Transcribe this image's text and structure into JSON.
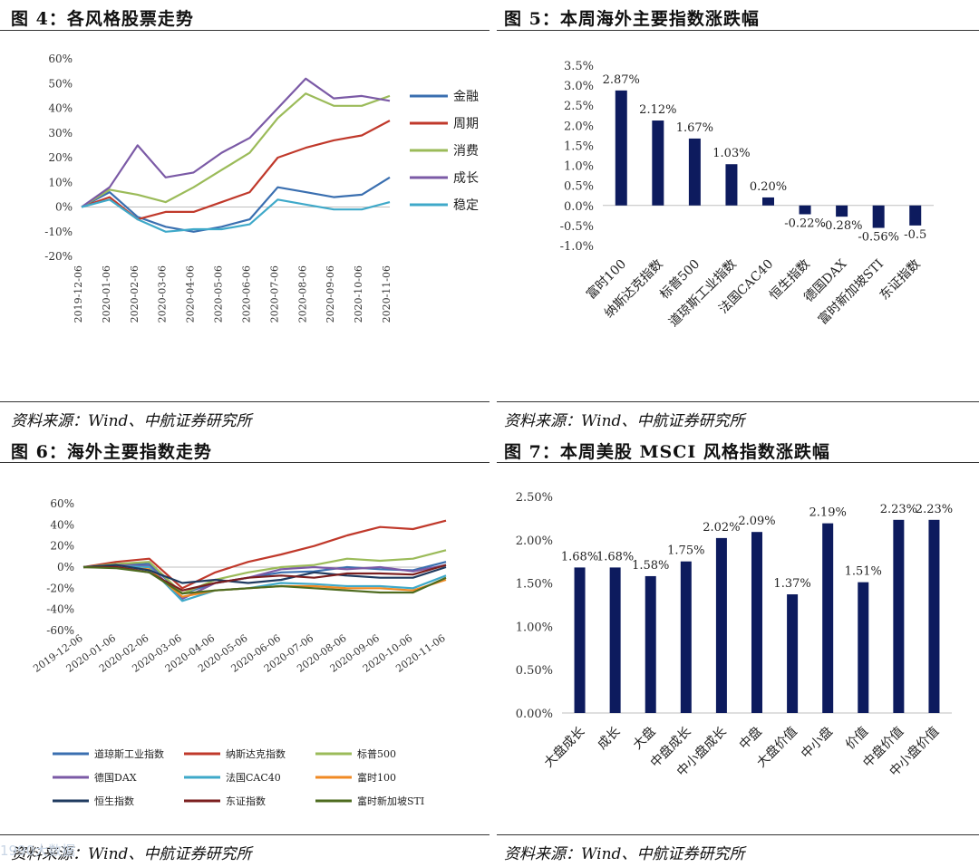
{
  "figures": {
    "fig4": {
      "title": "图 4：各风格股票走势",
      "source": "资料来源：Wind、中航证券研究所"
    },
    "fig5": {
      "title": "图 5：本周海外主要指数涨跌幅",
      "source": "资料来源：Wind、中航证券研究所"
    },
    "fig6": {
      "title": "图 6：海外主要指数走势",
      "source": "资料来源：Wind、中航证券研究所"
    },
    "fig7": {
      "title": "图 7：本周美股 MSCI 风格指数涨跌幅",
      "source": "资料来源：Wind、中航证券研究所"
    }
  },
  "watermark": "1990大数据",
  "colors": {
    "bar": "#0d1b5e",
    "grid": "#d9d9d9"
  },
  "chart_data": [
    {
      "id": "fig4",
      "type": "line",
      "title": "",
      "xlabel": "",
      "ylabel": "",
      "x": [
        "2019-12-06",
        "2020-01-06",
        "2020-02-06",
        "2020-03-06",
        "2020-04-06",
        "2020-05-06",
        "2020-06-06",
        "2020-07-06",
        "2020-08-06",
        "2020-09-06",
        "2020-10-06",
        "2020-11-06"
      ],
      "yticks": [
        "60%",
        "50%",
        "40%",
        "30%",
        "20%",
        "10%",
        "0%",
        "-10%",
        "-20%"
      ],
      "ylim": [
        -20,
        60
      ],
      "legend_position": "right",
      "series": [
        {
          "name": "金融",
          "color": "#3a6fb0",
          "values": [
            0,
            6,
            -4,
            -8,
            -10,
            -8,
            -5,
            8,
            6,
            4,
            5,
            12
          ]
        },
        {
          "name": "周期",
          "color": "#c0392b",
          "values": [
            0,
            4,
            -5,
            -2,
            -2,
            2,
            6,
            20,
            24,
            27,
            29,
            35
          ]
        },
        {
          "name": "消费",
          "color": "#9bbb59",
          "values": [
            0,
            7,
            5,
            2,
            8,
            15,
            22,
            36,
            46,
            41,
            41,
            45
          ]
        },
        {
          "name": "成长",
          "color": "#7b5aa6",
          "values": [
            0,
            8,
            25,
            12,
            14,
            22,
            28,
            40,
            52,
            44,
            45,
            43
          ]
        },
        {
          "name": "稳定",
          "color": "#3fa9c9",
          "values": [
            0,
            3,
            -5,
            -10,
            -9,
            -9,
            -7,
            3,
            1,
            -1,
            -1,
            2
          ]
        }
      ]
    },
    {
      "id": "fig5",
      "type": "bar",
      "title": "",
      "xlabel": "",
      "ylabel": "",
      "categories": [
        "富时100",
        "纳斯达克指数",
        "标普500",
        "道琼斯工业指数",
        "法国CAC40",
        "恒生指数",
        "德国DAX",
        "富时新加坡STI",
        "东证指数"
      ],
      "values": [
        2.87,
        2.12,
        1.67,
        1.03,
        0.2,
        -0.22,
        -0.28,
        -0.56,
        -0.5
      ],
      "labels": [
        "2.87%",
        "2.12%",
        "1.67%",
        "1.03%",
        "0.20%",
        "-0.22%",
        "-0.28%",
        "-0.56%",
        "-0.5"
      ],
      "yticks": [
        "3.5%",
        "3.0%",
        "2.5%",
        "2.0%",
        "1.5%",
        "1.0%",
        "0.5%",
        "0.0%",
        "-0.5%",
        "-1.0%"
      ],
      "ylim": [
        -1.0,
        3.5
      ]
    },
    {
      "id": "fig6",
      "type": "line",
      "title": "",
      "xlabel": "",
      "ylabel": "",
      "x": [
        "2019-12-06",
        "2020-01-06",
        "2020-02-06",
        "2020-03-06",
        "2020-04-06",
        "2020-05-06",
        "2020-06-06",
        "2020-07-06",
        "2020-08-06",
        "2020-09-06",
        "2020-10-06",
        "2020-11-06"
      ],
      "yticks": [
        "60%",
        "40%",
        "20%",
        "0%",
        "-20%",
        "-40%",
        "-60%"
      ],
      "ylim": [
        -60,
        60
      ],
      "legend_position": "bottom",
      "series": [
        {
          "name": "道琼斯工业指数",
          "color": "#3a6fb0",
          "values": [
            0,
            2,
            3,
            -25,
            -15,
            -10,
            -5,
            -4,
            0,
            -2,
            -3,
            5
          ]
        },
        {
          "name": "纳斯达克指数",
          "color": "#c0392b",
          "values": [
            0,
            5,
            8,
            -20,
            -5,
            5,
            12,
            20,
            30,
            38,
            36,
            44
          ]
        },
        {
          "name": "标普500",
          "color": "#9bbb59",
          "values": [
            0,
            3,
            5,
            -25,
            -12,
            -5,
            0,
            2,
            8,
            6,
            8,
            16
          ]
        },
        {
          "name": "德国DAX",
          "color": "#7b5aa6",
          "values": [
            0,
            2,
            1,
            -30,
            -15,
            -10,
            -2,
            0,
            -2,
            0,
            -4,
            2
          ]
        },
        {
          "name": "法国CAC40",
          "color": "#3fa9c9",
          "values": [
            0,
            1,
            0,
            -32,
            -22,
            -20,
            -15,
            -16,
            -18,
            -18,
            -20,
            -8
          ]
        },
        {
          "name": "富时100",
          "color": "#f08a24",
          "values": [
            0,
            0,
            -2,
            -28,
            -22,
            -20,
            -18,
            -18,
            -20,
            -20,
            -22,
            -12
          ]
        },
        {
          "name": "恒生指数",
          "color": "#1f3a5f",
          "values": [
            0,
            2,
            -3,
            -15,
            -12,
            -15,
            -12,
            -5,
            -8,
            -10,
            -10,
            0
          ]
        },
        {
          "name": "东证指数",
          "color": "#7b1f1f",
          "values": [
            0,
            0,
            -5,
            -22,
            -15,
            -10,
            -8,
            -10,
            -6,
            -6,
            -7,
            2
          ]
        },
        {
          "name": "富时新加坡STI",
          "color": "#4d6b1f",
          "values": [
            0,
            -1,
            -5,
            -25,
            -22,
            -20,
            -18,
            -20,
            -22,
            -24,
            -24,
            -10
          ]
        }
      ]
    },
    {
      "id": "fig7",
      "type": "bar",
      "title": "",
      "xlabel": "",
      "ylabel": "",
      "categories": [
        "大盘成长",
        "成长",
        "大盘",
        "中盘成长",
        "中小盘成长",
        "中盘",
        "大盘价值",
        "中小盘",
        "价值",
        "中盘价值",
        "中小盘价值"
      ],
      "values": [
        1.68,
        1.68,
        1.58,
        1.75,
        2.02,
        2.09,
        1.37,
        2.19,
        1.51,
        2.23,
        2.23
      ],
      "labels": [
        "1.68%",
        "1.68%",
        "1.58%",
        "1.75%",
        "2.02%",
        "2.09%",
        "1.37%",
        "2.19%",
        "1.51%",
        "2.23%",
        "2.23%"
      ],
      "yticks": [
        "2.50%",
        "2.00%",
        "1.50%",
        "1.00%",
        "0.50%",
        "0.00%"
      ],
      "ylim": [
        0,
        2.5
      ]
    }
  ]
}
